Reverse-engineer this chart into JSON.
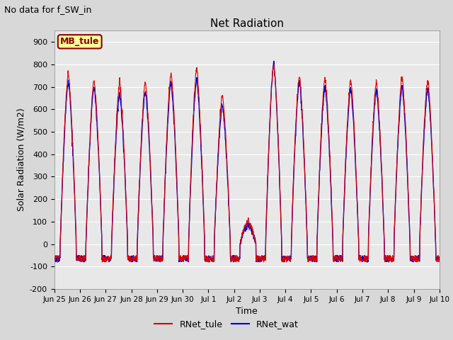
{
  "title": "Net Radiation",
  "suptitle": "No data for f_SW_in",
  "ylabel": "Solar Radiation (W/m2)",
  "xlabel": "Time",
  "ylim": [
    -200,
    950
  ],
  "yticks": [
    -200,
    -100,
    0,
    100,
    200,
    300,
    400,
    500,
    600,
    700,
    800,
    900
  ],
  "xtick_labels": [
    "Jun 25",
    "Jun 26",
    "Jun 27",
    "Jun 28",
    "Jun 29",
    "Jun 30",
    "Jul 1",
    "Jul 2",
    "Jul 3",
    "Jul 4",
    "Jul 5",
    "Jul 6",
    "Jul 7",
    "Jul 8",
    "Jul 9",
    "Jul 10"
  ],
  "legend_label": "MB_tule",
  "legend_box_color": "#ffff99",
  "legend_box_edge": "#8b0000",
  "line1_label": "RNet_tule",
  "line1_color": "#dd0000",
  "line2_label": "RNet_wat",
  "line2_color": "#0000cc",
  "bg_color": "#d8d8d8",
  "plot_bg_color": "#e8e8e8",
  "grid_color": "#ffffff",
  "n_days": 15,
  "pts_per_day": 96,
  "day_peak_tule": [
    760,
    730,
    715,
    720,
    760,
    780,
    660,
    100,
    800,
    750,
    740,
    730,
    720,
    740,
    730
  ],
  "day_peak_wat": [
    720,
    700,
    670,
    680,
    720,
    730,
    620,
    90,
    800,
    720,
    700,
    690,
    680,
    700,
    690
  ],
  "night_base": -50,
  "night_vary": 30
}
